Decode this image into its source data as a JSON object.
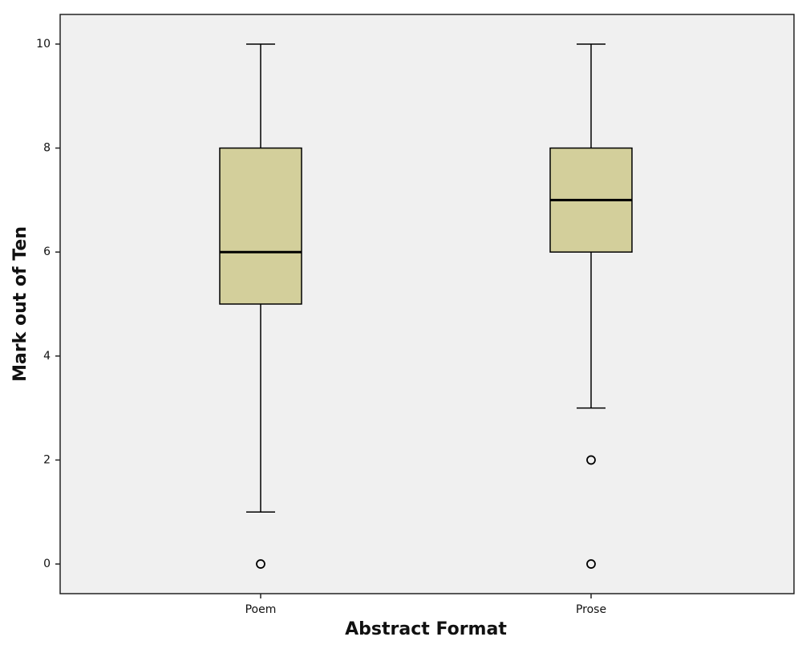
{
  "chart_data": {
    "type": "box",
    "x_label": "Abstract Format",
    "y_label": "Mark out of Ten",
    "categories": [
      "Poem",
      "Prose"
    ],
    "boxes": [
      {
        "min": 1,
        "q1": 5,
        "median": 6,
        "q3": 8,
        "max": 10,
        "outliers": [
          0
        ]
      },
      {
        "min": 3,
        "q1": 6,
        "median": 7,
        "q3": 8,
        "max": 10,
        "outliers": [
          2,
          0
        ]
      }
    ],
    "color": "#d3cf9b",
    "background": "#f0f0f0",
    "ylim": [
      -0.57,
      10.57
    ],
    "yticks": [
      0,
      2,
      4,
      6,
      8,
      10
    ]
  }
}
